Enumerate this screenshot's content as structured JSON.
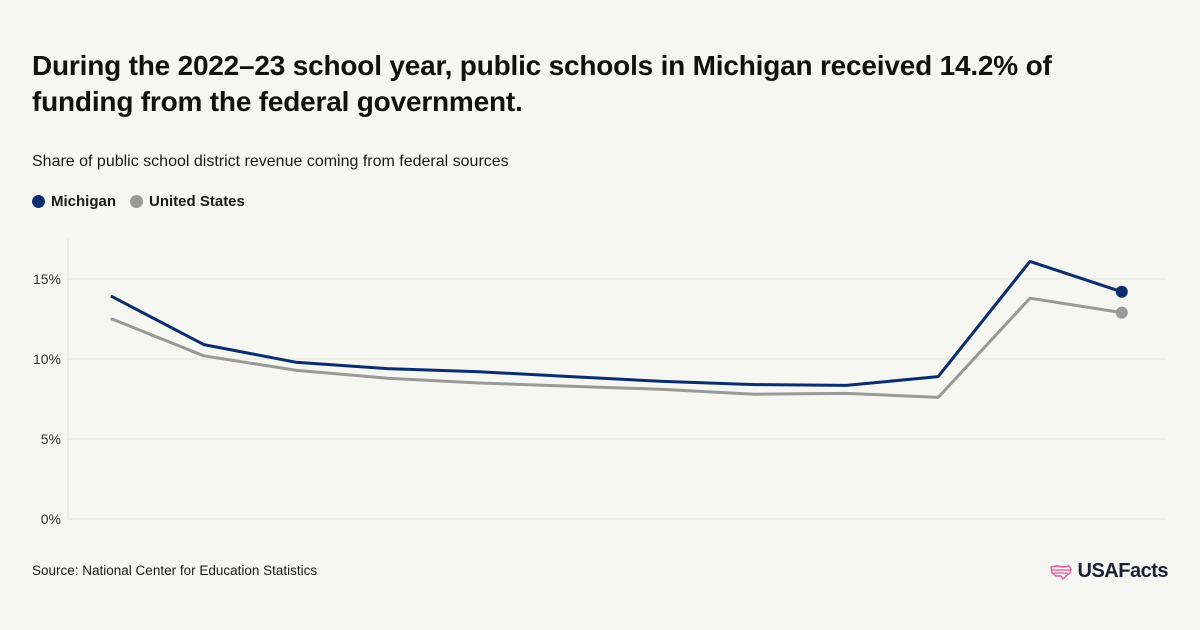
{
  "title": "During the 2022–23 school year, public schools in Michigan received 14.2% of funding from the federal government.",
  "subtitle": "Share of public school district revenue coming from federal sources",
  "legend": [
    {
      "label": "Michigan",
      "color": "#0b2d6e"
    },
    {
      "label": "United States",
      "color": "#999999"
    }
  ],
  "source": "Source: National Center for Education Statistics",
  "logo": {
    "text": "USAFacts",
    "icon": "usa-flag-map-icon",
    "icon_color": "#e0579b"
  },
  "chart_data": {
    "type": "line",
    "ylim": [
      0,
      17.5
    ],
    "yticks": [
      0,
      5,
      10,
      15
    ],
    "ytick_labels": [
      "0%",
      "5%",
      "10%",
      "15%"
    ],
    "grid": true,
    "legend_position": "top-left",
    "series": [
      {
        "name": "Michigan",
        "color": "#0b2d6e",
        "values": [
          13.9,
          10.9,
          9.8,
          9.4,
          9.2,
          8.9,
          8.6,
          8.4,
          8.35,
          8.9,
          16.1,
          14.2
        ]
      },
      {
        "name": "United States",
        "color": "#999999",
        "values": [
          12.5,
          10.2,
          9.3,
          8.8,
          8.5,
          8.3,
          8.1,
          7.8,
          7.85,
          7.6,
          13.8,
          12.9
        ]
      }
    ]
  }
}
